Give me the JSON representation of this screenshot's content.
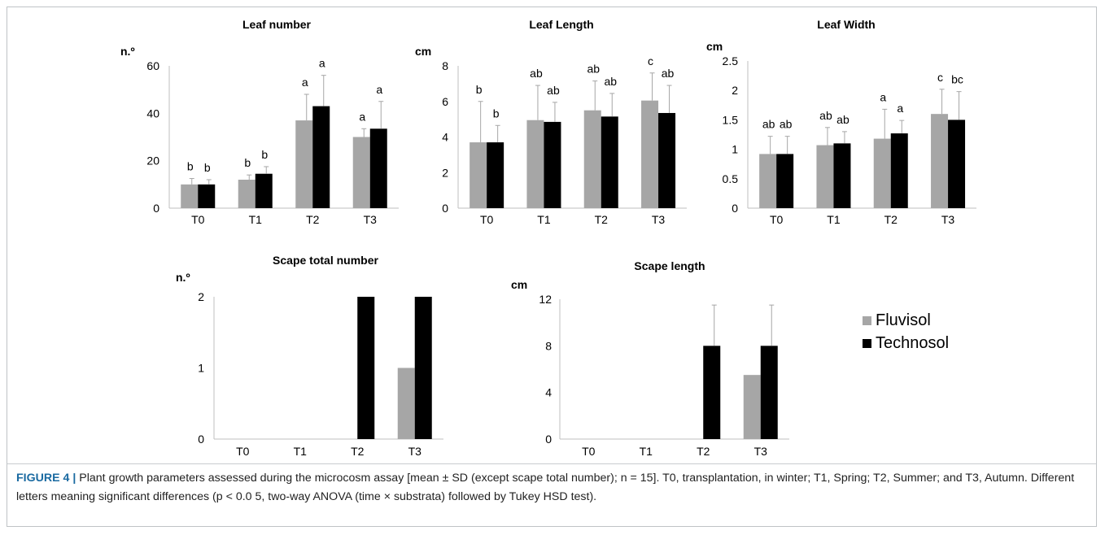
{
  "colors": {
    "fluvisol": "#a6a6a6",
    "technosol": "#000000",
    "error_bar": "#a6a6a6",
    "axis": "#bfbfbf"
  },
  "legend": {
    "items": [
      {
        "label": "Fluvisol",
        "color": "#a6a6a6"
      },
      {
        "label": "Technosol",
        "color": "#000000"
      }
    ]
  },
  "caption": {
    "label": "FIGURE 4 |",
    "text": " Plant growth parameters assessed during the microcosm assay [mean ± SD (except scape total number); n = 15]. T0, transplantation, in winter; T1, Spring; T2, Summer; and T3, Autumn. Different letters meaning significant differences (p < 0.0 5, two-way ANOVA (time × substrata) followed by Tukey HSD test)."
  },
  "chart_data": [
    {
      "type": "bar",
      "title": "Leaf number",
      "ylabel": "n.º",
      "categories": [
        "T0",
        "T1",
        "T2",
        "T3"
      ],
      "ylim": [
        0,
        60
      ],
      "yticks": [
        "0",
        "20",
        "40",
        "60"
      ],
      "series": [
        {
          "name": "Fluvisol",
          "values": [
            10,
            12,
            37,
            30
          ],
          "error": [
            2.5,
            2,
            11,
            3.5
          ],
          "labels": [
            "b",
            "b",
            "a",
            "a"
          ]
        },
        {
          "name": "Technosol",
          "values": [
            10,
            14.5,
            43,
            33.5
          ],
          "error": [
            2,
            3,
            13,
            11.5
          ],
          "labels": [
            "b",
            "b",
            "a",
            "a"
          ]
        }
      ]
    },
    {
      "type": "bar",
      "title": "Leaf Length",
      "ylabel": "cm",
      "categories": [
        "T0",
        "T1",
        "T2",
        "T3"
      ],
      "ylim": [
        0,
        8
      ],
      "yticks": [
        "0",
        "2",
        "4",
        "6",
        "8"
      ],
      "series": [
        {
          "name": "Fluvisol",
          "values": [
            3.7,
            4.95,
            5.5,
            6.05
          ],
          "error": [
            2.3,
            1.95,
            1.65,
            1.55
          ],
          "labels": [
            "b",
            "ab",
            "ab",
            "c"
          ]
        },
        {
          "name": "Technosol",
          "values": [
            3.7,
            4.85,
            5.15,
            5.35
          ],
          "error": [
            0.95,
            1.1,
            1.3,
            1.55
          ],
          "labels": [
            "b",
            "ab",
            "ab",
            "ab"
          ]
        }
      ]
    },
    {
      "type": "bar",
      "title": "Leaf Width",
      "ylabel": "cm",
      "categories": [
        "T0",
        "T1",
        "T2",
        "T3"
      ],
      "ylim": [
        0,
        2.5
      ],
      "yticks": [
        "0",
        "0.5",
        "1",
        "1.5",
        "2",
        "2.5"
      ],
      "series": [
        {
          "name": "Fluvisol",
          "values": [
            0.92,
            1.07,
            1.18,
            1.6
          ],
          "error": [
            0.3,
            0.3,
            0.5,
            0.42
          ],
          "labels": [
            "ab",
            "ab",
            "a",
            "c"
          ]
        },
        {
          "name": "Technosol",
          "values": [
            0.92,
            1.1,
            1.27,
            1.5
          ],
          "error": [
            0.3,
            0.2,
            0.22,
            0.48
          ],
          "labels": [
            "ab",
            "ab",
            "a",
            "bc"
          ]
        }
      ]
    },
    {
      "type": "bar",
      "title": "Scape total number",
      "ylabel": "n.º",
      "categories": [
        "T0",
        "T1",
        "T2",
        "T3"
      ],
      "ylim": [
        0,
        2
      ],
      "yticks": [
        "0",
        "1",
        "2"
      ],
      "series": [
        {
          "name": "Fluvisol",
          "values": [
            0,
            0,
            0,
            1
          ]
        },
        {
          "name": "Technosol",
          "values": [
            0,
            0,
            2,
            2
          ]
        }
      ]
    },
    {
      "type": "bar",
      "title": "Scape length",
      "ylabel": "cm",
      "categories": [
        "T0",
        "T1",
        "T2",
        "T3"
      ],
      "ylim": [
        0,
        12
      ],
      "yticks": [
        "0",
        "4",
        "8",
        "12"
      ],
      "series": [
        {
          "name": "Fluvisol",
          "values": [
            0,
            0,
            0,
            5.5
          ],
          "error": [
            0,
            0,
            0,
            0
          ]
        },
        {
          "name": "Technosol",
          "values": [
            0,
            0,
            8,
            8
          ],
          "error": [
            0,
            0,
            3.5,
            3.5
          ]
        }
      ]
    }
  ]
}
